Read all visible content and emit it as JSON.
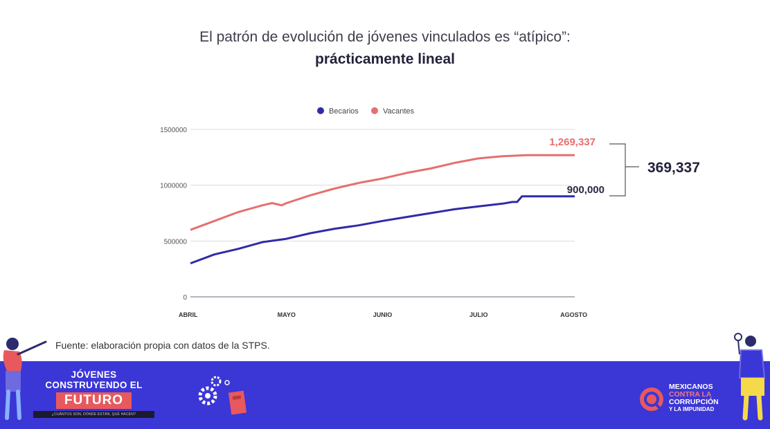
{
  "header": {
    "title_line1": "El patrón de evolución de jóvenes vinculados es “atípico”:",
    "title_line2": "prácticamente lineal"
  },
  "chart_data": {
    "type": "line",
    "x_categories": [
      "ABRIL",
      "MAYO",
      "JUNIO",
      "JULIO",
      "AGOSTO"
    ],
    "y_ticks": [
      "0",
      "500000",
      "1000000",
      "1500000"
    ],
    "ylim": [
      0,
      1500000
    ],
    "grid": true,
    "legend_position": "top-center",
    "series": [
      {
        "name": "Becarios",
        "color": "#2f2ba8",
        "x": [
          0,
          0.25,
          0.5,
          0.75,
          1.0,
          1.25,
          1.5,
          1.75,
          2.0,
          2.25,
          2.5,
          2.75,
          3.0,
          3.25,
          3.35,
          3.4,
          3.45,
          3.5,
          3.75,
          4.0
        ],
        "values": [
          300000,
          380000,
          430000,
          490000,
          520000,
          570000,
          610000,
          640000,
          680000,
          715000,
          750000,
          785000,
          810000,
          835000,
          850000,
          850000,
          900000,
          900000,
          900000,
          900000
        ]
      },
      {
        "name": "Vacantes",
        "color": "#e66f6f",
        "x": [
          0,
          0.25,
          0.5,
          0.75,
          0.85,
          0.95,
          1.0,
          1.25,
          1.5,
          1.75,
          2.0,
          2.25,
          2.5,
          2.75,
          3.0,
          3.25,
          3.5,
          3.75,
          4.0
        ],
        "values": [
          600000,
          680000,
          760000,
          820000,
          840000,
          820000,
          840000,
          910000,
          970000,
          1020000,
          1060000,
          1110000,
          1150000,
          1200000,
          1240000,
          1260000,
          1269337,
          1269337,
          1269337
        ]
      }
    ],
    "annotations": {
      "vacantes_end": "1,269,337",
      "becarios_end": "900,000",
      "difference": "369,337"
    }
  },
  "source": "Fuente: elaboración propia con datos de la STPS.",
  "footer": {
    "background": "#3b36d6",
    "left_brand": {
      "line1": "JÓVENES",
      "line2": "CONSTRUYENDO EL",
      "highlight": "FUTURO",
      "tagline": "¿CUÁNTOS SON, DÓNDE ESTÁN, QUÉ HACEN?"
    },
    "right_brand": {
      "line1": "MEXICANOS",
      "line2": "CONTRA LA",
      "line3": "CORRUPCIÓN",
      "line4": "Y LA IMPUNIDAD"
    },
    "icons": [
      "person-presenting-icon",
      "gears-icon",
      "notebook-icon",
      "logo-icon",
      "person-magnifier-icon"
    ]
  }
}
